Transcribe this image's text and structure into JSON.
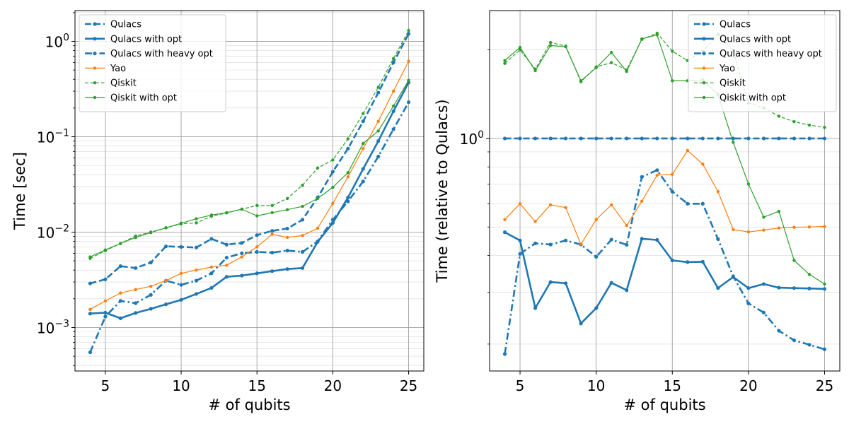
{
  "chart_data": [
    {
      "type": "line",
      "xlabel": "# of qubits",
      "ylabel": "Time [sec]",
      "yscale": "log",
      "xlim": [
        3,
        26
      ],
      "ylim": [
        0.00035,
        2.1
      ],
      "xticks": [
        5,
        10,
        15,
        20,
        25
      ],
      "xtick_labels": [
        "5",
        "10",
        "15",
        "20",
        "25"
      ],
      "yticks": [
        0.001,
        0.01,
        0.1,
        1
      ],
      "ytick_labels": [
        {
          "base": "10",
          "exp": "−3"
        },
        {
          "base": "10",
          "exp": "−2"
        },
        {
          "base": "10",
          "exp": "−1"
        },
        {
          "base": "10",
          "exp": "0"
        }
      ],
      "grid": true,
      "legend_position": "top-left",
      "x": [
        4,
        5,
        6,
        7,
        8,
        9,
        10,
        11,
        12,
        13,
        14,
        15,
        16,
        17,
        18,
        19,
        20,
        21,
        22,
        23,
        24,
        25
      ],
      "series": [
        {
          "name": "Qulacs",
          "color": "#1f77b4",
          "style": "dashed-thick",
          "values": [
            0.0029,
            0.0032,
            0.0044,
            0.0042,
            0.0048,
            0.0071,
            0.007,
            0.0069,
            0.0085,
            0.0074,
            0.0077,
            0.0093,
            0.0103,
            0.0109,
            0.0135,
            0.023,
            0.043,
            0.075,
            0.145,
            0.29,
            0.6,
            1.2
          ]
        },
        {
          "name": "Qulacs with opt",
          "color": "#1f77b4",
          "style": "solid-thick",
          "values": [
            0.0014,
            0.00143,
            0.00125,
            0.00142,
            0.00157,
            0.00175,
            0.00195,
            0.00225,
            0.0026,
            0.0034,
            0.0035,
            0.0037,
            0.0039,
            0.0041,
            0.0042,
            0.0079,
            0.0125,
            0.023,
            0.046,
            0.09,
            0.185,
            0.37
          ]
        },
        {
          "name": "Qulacs with heavy opt",
          "color": "#1f77b4",
          "style": "dashdot-thick",
          "values": [
            0.00055,
            0.0013,
            0.0019,
            0.0018,
            0.0022,
            0.0031,
            0.0028,
            0.0031,
            0.0037,
            0.0054,
            0.006,
            0.0062,
            0.0061,
            0.0064,
            0.0062,
            0.008,
            0.0135,
            0.021,
            0.034,
            0.062,
            0.12,
            0.23
          ]
        },
        {
          "name": "Yao",
          "color": "#ff7f0e",
          "style": "solid-thin",
          "values": [
            0.00155,
            0.0019,
            0.0023,
            0.0025,
            0.0027,
            0.0031,
            0.0037,
            0.004,
            0.0043,
            0.0045,
            0.0055,
            0.007,
            0.0095,
            0.0088,
            0.0092,
            0.011,
            0.02,
            0.038,
            0.075,
            0.145,
            0.3,
            0.62
          ]
        },
        {
          "name": "Qiskit",
          "color": "#2ca02c",
          "style": "dashed-thin",
          "values": [
            0.0053,
            0.0064,
            0.0076,
            0.0091,
            0.01,
            0.0111,
            0.0122,
            0.0125,
            0.0147,
            0.0159,
            0.0174,
            0.019,
            0.019,
            0.0225,
            0.031,
            0.047,
            0.057,
            0.095,
            0.175,
            0.33,
            0.66,
            1.3
          ]
        },
        {
          "name": "Qiskit with opt",
          "color": "#2ca02c",
          "style": "solid-thin",
          "values": [
            0.0055,
            0.0065,
            0.0076,
            0.0088,
            0.0099,
            0.0111,
            0.0124,
            0.0138,
            0.0151,
            0.016,
            0.0174,
            0.0148,
            0.016,
            0.0172,
            0.0186,
            0.0225,
            0.0295,
            0.042,
            0.085,
            0.115,
            0.21,
            0.39
          ]
        }
      ]
    },
    {
      "type": "line",
      "xlabel": "# of qubits",
      "ylabel": "Time (relative to Qulacs)",
      "yscale": "log",
      "xlim": [
        3,
        26
      ],
      "ylim": [
        0.162,
        2.72
      ],
      "xticks": [
        5,
        10,
        15,
        20,
        25
      ],
      "xtick_labels": [
        "5",
        "10",
        "15",
        "20",
        "25"
      ],
      "yticks": [
        1
      ],
      "ytick_labels": [
        {
          "base": "10",
          "exp": "0"
        }
      ],
      "grid": true,
      "legend_position": "top-right",
      "x": [
        4,
        5,
        6,
        7,
        8,
        9,
        10,
        11,
        12,
        13,
        14,
        15,
        16,
        17,
        18,
        19,
        20,
        21,
        22,
        23,
        24,
        25
      ],
      "series": [
        {
          "name": "Qulacs",
          "color": "#1f77b4",
          "style": "dashed-thick",
          "values": [
            1,
            1,
            1,
            1,
            1,
            1,
            1,
            1,
            1,
            1,
            1,
            1,
            1,
            1,
            1,
            1,
            1,
            1,
            1,
            1,
            1,
            1
          ]
        },
        {
          "name": "Qulacs with opt",
          "color": "#1f77b4",
          "style": "solid-thick",
          "values": [
            0.48,
            0.45,
            0.265,
            0.325,
            0.322,
            0.235,
            0.265,
            0.323,
            0.305,
            0.456,
            0.452,
            0.385,
            0.38,
            0.381,
            0.31,
            0.338,
            0.31,
            0.32,
            0.311,
            0.31,
            0.309,
            0.308
          ]
        },
        {
          "name": "Qulacs with heavy opt",
          "color": "#1f77b4",
          "style": "dashdot-thick",
          "values": [
            0.185,
            0.405,
            0.44,
            0.436,
            0.45,
            0.436,
            0.396,
            0.453,
            0.435,
            0.74,
            0.78,
            0.66,
            0.6,
            0.6,
            0.455,
            0.34,
            0.275,
            0.256,
            0.222,
            0.206,
            0.199,
            0.192
          ]
        },
        {
          "name": "Yao",
          "color": "#ff7f0e",
          "style": "solid-thin",
          "values": [
            0.53,
            0.6,
            0.522,
            0.595,
            0.582,
            0.437,
            0.53,
            0.595,
            0.506,
            0.612,
            0.75,
            0.755,
            0.91,
            0.818,
            0.66,
            0.49,
            0.481,
            0.488,
            0.496,
            0.499,
            0.5,
            0.502
          ]
        },
        {
          "name": "Qiskit",
          "color": "#2ca02c",
          "style": "dashed-thin",
          "values": [
            1.8,
            2.0,
            1.72,
            2.12,
            2.06,
            1.56,
            1.75,
            1.81,
            1.71,
            2.17,
            2.28,
            1.98,
            1.84,
            1.98,
            2.26,
            1.98,
            1.32,
            1.27,
            1.19,
            1.14,
            1.11,
            1.09
          ]
        },
        {
          "name": "Qiskit with opt",
          "color": "#2ca02c",
          "style": "solid-thin",
          "values": [
            1.84,
            2.04,
            1.7,
            2.07,
            2.05,
            1.57,
            1.74,
            1.96,
            1.69,
            2.18,
            2.25,
            1.57,
            1.57,
            1.58,
            1.41,
            0.97,
            0.7,
            0.54,
            0.565,
            0.385,
            0.345,
            0.32
          ]
        }
      ]
    }
  ]
}
